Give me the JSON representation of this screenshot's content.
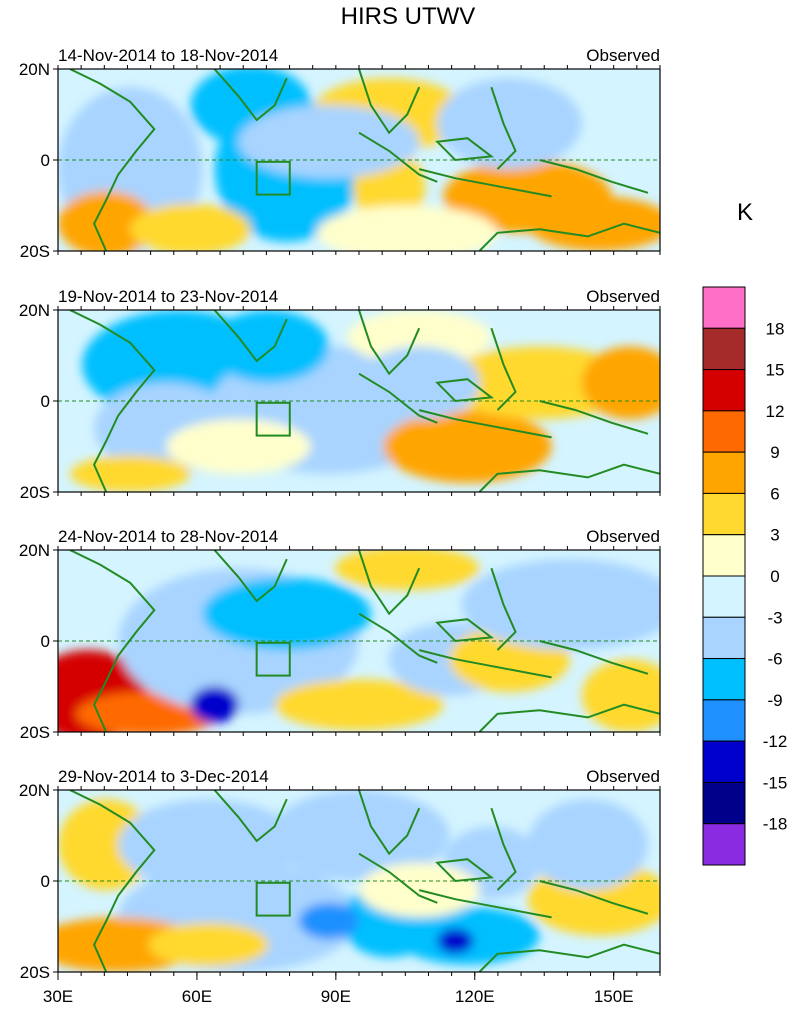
{
  "title": "HIRS UTWV",
  "panels": [
    {
      "date_range": "14-Nov-2014 to 18-Nov-2014",
      "tag": "Observed"
    },
    {
      "date_range": "19-Nov-2014 to 23-Nov-2014",
      "tag": "Observed"
    },
    {
      "date_range": "24-Nov-2014 to 28-Nov-2014",
      "tag": "Observed"
    },
    {
      "date_range": "29-Nov-2014 to 3-Dec-2014",
      "tag": "Observed"
    }
  ],
  "lat_ticks": [
    "20N",
    "0",
    "20S"
  ],
  "lon_ticks": [
    "30E",
    "60E",
    "90E",
    "120E",
    "150E"
  ],
  "colorbar": {
    "unit": "K",
    "levels": [
      "18",
      "15",
      "12",
      "9",
      "6",
      "3",
      "0",
      "-3",
      "-6",
      "-9",
      "-12",
      "-15",
      "-18"
    ],
    "colors": [
      "#ff6ec7",
      "#a52a2a",
      "#d40000",
      "#ff6a00",
      "#ffa500",
      "#ffd92f",
      "#ffffcc",
      "#d4f4ff",
      "#a8d4ff",
      "#00bfff",
      "#1e90ff",
      "#0000cd",
      "#00008b",
      "#8a2be2"
    ]
  },
  "palette": {
    "ocean_line": "#228b22",
    "equator_line": "#228b22"
  }
}
